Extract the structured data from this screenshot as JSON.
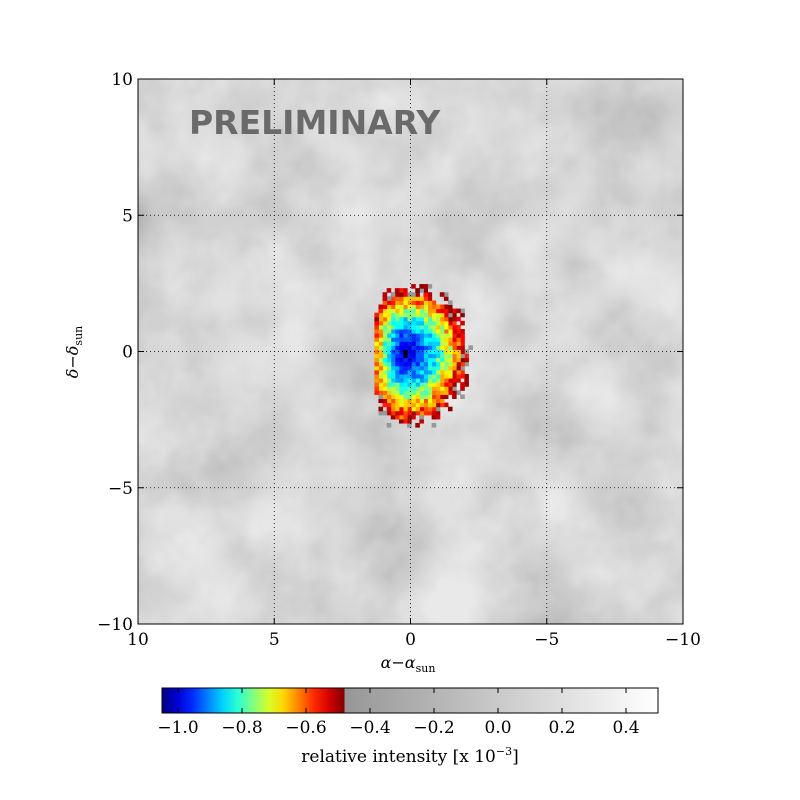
{
  "chart_data": {
    "type": "heatmap",
    "title": "",
    "watermark": "PRELIMINARY",
    "xlabel": "α−α_sun",
    "ylabel": "δ−δ_sun",
    "xlim": [
      10,
      -10
    ],
    "ylim": [
      -10,
      10
    ],
    "x_ticks": [
      10,
      5,
      0,
      -5,
      -10
    ],
    "x_tick_labels": [
      "10",
      "5",
      "0",
      "−5",
      "−10"
    ],
    "y_ticks": [
      10,
      5,
      0,
      -5,
      -10
    ],
    "y_tick_labels": [
      "10",
      "5",
      "0",
      "−5",
      "−10"
    ],
    "grid": true,
    "grid_style": "dotted",
    "deficit_region": {
      "description_values": "intensity deficit centered near (0, 0)",
      "center": [
        0.2,
        0.0
      ],
      "min_value": -1.0,
      "extent_x": [
        -2.5,
        1.3
      ],
      "extent_y": [
        -3.0,
        2.5
      ]
    },
    "colorbar": {
      "label": "relative intensity [x 10",
      "label_exponent": "−3",
      "label_suffix": "]",
      "range": [
        -1.05,
        0.5
      ],
      "ticks": [
        -1.0,
        -0.8,
        -0.6,
        -0.4,
        -0.2,
        0.0,
        0.2,
        0.4
      ],
      "tick_labels": [
        "−1.0",
        "−0.8",
        "−0.6",
        "−0.4",
        "−0.2",
        "0.0",
        "0.2",
        "0.4"
      ],
      "color_threshold": -0.48,
      "colormap_low": "jet",
      "colormap_high": "gray"
    },
    "colors": {
      "background_light": "#e6e6e6",
      "background_dark": "#b4b4b4",
      "jet_blue": "#00008f",
      "jet_red": "#800000"
    }
  }
}
